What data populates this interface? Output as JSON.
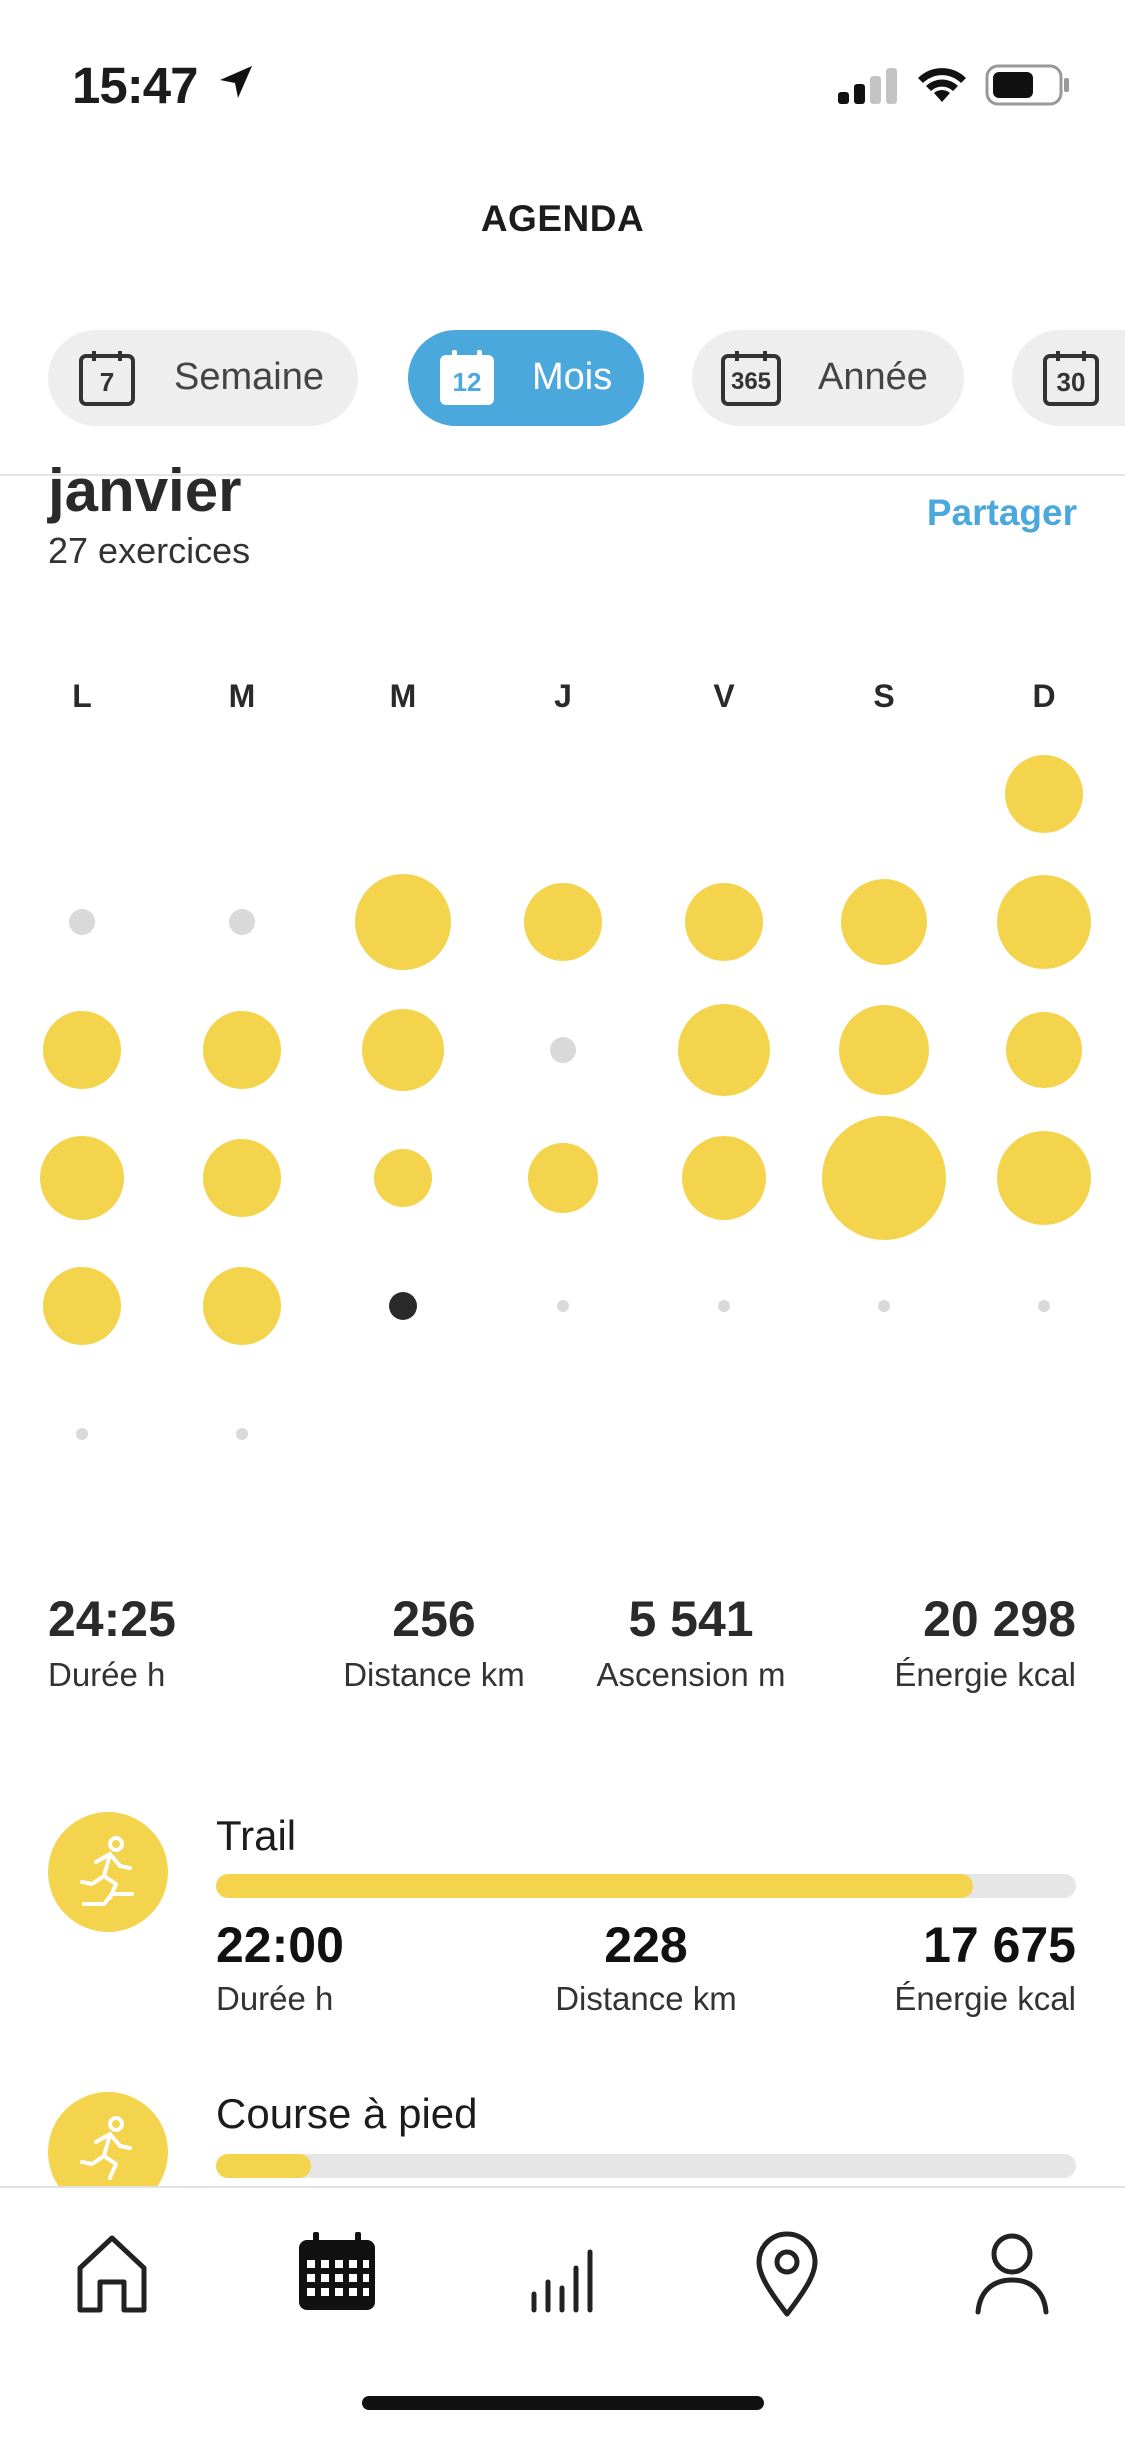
{
  "status_bar": {
    "time": "15:47"
  },
  "header": {
    "title": "AGENDA"
  },
  "periods": [
    {
      "label": "Semaine",
      "icon_number": "7",
      "active": false
    },
    {
      "label": "Mois",
      "icon_number": "12",
      "active": true
    },
    {
      "label": "Année",
      "icon_number": "365",
      "active": false
    },
    {
      "label": "",
      "icon_number": "30",
      "active": false
    }
  ],
  "month": {
    "name": "janvier",
    "count": "27 exercices",
    "share_label": "Partager"
  },
  "calendar": {
    "weekdays": [
      "L",
      "M",
      "M",
      "J",
      "V",
      "S",
      "D"
    ]
  },
  "summary": [
    {
      "value": "24:25",
      "label": "Durée h"
    },
    {
      "value": "256",
      "label": "Distance km"
    },
    {
      "value": "5 541",
      "label": "Ascension m"
    },
    {
      "value": "20 298",
      "label": "Énergie kcal"
    }
  ],
  "activities": [
    {
      "name": "Trail",
      "share": 0.88,
      "stats": [
        {
          "value": "22:00",
          "label": "Durée h"
        },
        {
          "value": "228",
          "label": "Distance km"
        },
        {
          "value": "17 675",
          "label": "Énergie kcal"
        }
      ]
    },
    {
      "name": "Course à pied",
      "share": 0.11
    }
  ],
  "tabs": [
    "home-icon",
    "calendar-icon",
    "stats-icon",
    "map-pin-icon",
    "profile-icon"
  ],
  "colors": {
    "accent": "#4aa8dd",
    "activity": "#f4d44d",
    "empty_day": "#d9d9d9"
  }
}
